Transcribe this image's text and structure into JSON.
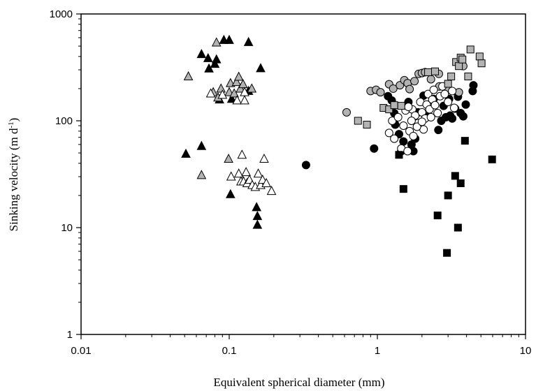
{
  "chart_data": {
    "type": "scatter",
    "title": "",
    "xlabel": "Equivalent spherical diameter (mm)",
    "ylabel_main": "Sinking velocity (m d",
    "ylabel_sup": "-1",
    "ylabel_close": ")",
    "xscale": "log",
    "yscale": "log",
    "xlim": [
      0.01,
      10
    ],
    "ylim": [
      1,
      1000
    ],
    "xticks": [
      0.01,
      0.1,
      1,
      10
    ],
    "xtick_labels": [
      "0.01",
      "0.1",
      "1",
      "10"
    ],
    "yticks": [
      1,
      10,
      100,
      1000
    ],
    "ytick_labels": [
      "1",
      "10",
      "100",
      "1000"
    ],
    "grid": false,
    "legend": "none",
    "series": [
      {
        "marker": "triangle",
        "fill": "#000000",
        "points": [
          [
            0.051,
            49
          ],
          [
            0.065,
            58
          ],
          [
            0.065,
            420
          ],
          [
            0.072,
            385
          ],
          [
            0.073,
            308
          ],
          [
            0.08,
            340
          ],
          [
            0.082,
            375
          ],
          [
            0.086,
            158
          ],
          [
            0.092,
            570
          ],
          [
            0.1,
            570
          ],
          [
            0.102,
            20.5
          ],
          [
            0.104,
            160
          ],
          [
            0.135,
            545
          ],
          [
            0.135,
            190
          ],
          [
            0.153,
            15.5
          ],
          [
            0.155,
            12.8
          ],
          [
            0.155,
            10.6
          ],
          [
            0.163,
            310
          ]
        ]
      },
      {
        "marker": "triangle",
        "fill": "#b3b3b3",
        "points": [
          [
            0.053,
            260
          ],
          [
            0.065,
            31
          ],
          [
            0.082,
            540
          ],
          [
            0.078,
            185
          ],
          [
            0.084,
            165
          ],
          [
            0.088,
            200
          ],
          [
            0.099,
            44
          ],
          [
            0.1,
            185
          ],
          [
            0.102,
            225
          ],
          [
            0.108,
            180
          ],
          [
            0.112,
            230
          ],
          [
            0.116,
            258
          ],
          [
            0.119,
            200
          ],
          [
            0.124,
            220
          ],
          [
            0.142,
            200
          ]
        ]
      },
      {
        "marker": "triangle",
        "fill": "#ffffff",
        "points": [
          [
            0.075,
            180
          ],
          [
            0.09,
            175
          ],
          [
            0.103,
            30
          ],
          [
            0.113,
            155
          ],
          [
            0.116,
            32
          ],
          [
            0.12,
            27
          ],
          [
            0.122,
            48
          ],
          [
            0.125,
            27
          ],
          [
            0.127,
            185
          ],
          [
            0.127,
            155
          ],
          [
            0.13,
            33
          ],
          [
            0.132,
            26
          ],
          [
            0.137,
            28
          ],
          [
            0.143,
            25
          ],
          [
            0.15,
            24
          ],
          [
            0.157,
            32
          ],
          [
            0.163,
            25
          ],
          [
            0.168,
            28
          ],
          [
            0.172,
            44
          ],
          [
            0.178,
            26
          ],
          [
            0.193,
            22
          ]
        ]
      },
      {
        "marker": "circle",
        "fill": "#000000",
        "points": [
          [
            0.33,
            38.5
          ],
          [
            0.95,
            55
          ],
          [
            1.18,
            170
          ],
          [
            1.25,
            155
          ],
          [
            1.3,
            118
          ],
          [
            1.32,
            92
          ],
          [
            1.4,
            75
          ],
          [
            1.45,
            52
          ],
          [
            1.5,
            64
          ],
          [
            1.55,
            135
          ],
          [
            1.62,
            150
          ],
          [
            1.7,
            60
          ],
          [
            1.75,
            52
          ],
          [
            1.8,
            68
          ],
          [
            1.88,
            120
          ],
          [
            2.05,
            172
          ],
          [
            2.2,
            110
          ],
          [
            2.4,
            160
          ],
          [
            2.58,
            82
          ],
          [
            2.7,
            100
          ],
          [
            2.8,
            138
          ],
          [
            2.9,
            108
          ],
          [
            3.05,
            160
          ],
          [
            3.1,
            112
          ],
          [
            3.2,
            105
          ],
          [
            3.35,
            130
          ],
          [
            3.5,
            168
          ],
          [
            3.65,
            118
          ],
          [
            3.8,
            110
          ],
          [
            3.95,
            142
          ],
          [
            4.4,
            190
          ],
          [
            4.45,
            215
          ]
        ]
      },
      {
        "marker": "circle",
        "fill": "#b3b3b3",
        "points": [
          [
            0.62,
            120
          ],
          [
            0.9,
            190
          ],
          [
            0.98,
            195
          ],
          [
            1.05,
            185
          ],
          [
            1.2,
            220
          ],
          [
            1.28,
            200
          ],
          [
            1.42,
            215
          ],
          [
            1.52,
            240
          ],
          [
            1.6,
            225
          ],
          [
            1.65,
            198
          ],
          [
            1.78,
            235
          ],
          [
            1.9,
            275
          ],
          [
            2.0,
            280
          ],
          [
            2.1,
            285
          ],
          [
            2.3,
            245
          ],
          [
            2.6,
            275
          ],
          [
            2.62,
            210
          ],
          [
            3.0,
            195
          ],
          [
            3.55,
            185
          ],
          [
            3.8,
            325
          ]
        ]
      },
      {
        "marker": "circle",
        "fill": "#ffffff",
        "points": [
          [
            1.2,
            77
          ],
          [
            1.26,
            100
          ],
          [
            1.3,
            68
          ],
          [
            1.38,
            108
          ],
          [
            1.45,
            55
          ],
          [
            1.5,
            90
          ],
          [
            1.55,
            125
          ],
          [
            1.6,
            52
          ],
          [
            1.65,
            80
          ],
          [
            1.72,
            128
          ],
          [
            1.75,
            72
          ],
          [
            1.8,
            112
          ],
          [
            1.88,
            95
          ],
          [
            1.95,
            150
          ],
          [
            2.0,
            120
          ],
          [
            2.05,
            83
          ],
          [
            2.1,
            105
          ],
          [
            2.15,
            142
          ],
          [
            2.2,
            178
          ],
          [
            2.25,
            128
          ],
          [
            2.35,
            158
          ],
          [
            2.4,
            195
          ],
          [
            2.45,
            140
          ],
          [
            2.55,
            118
          ],
          [
            2.65,
            170
          ],
          [
            2.75,
            210
          ],
          [
            2.85,
            178
          ],
          [
            3.0,
            150
          ],
          [
            3.2,
            190
          ],
          [
            3.3,
            132
          ],
          [
            1.85,
            88
          ],
          [
            1.7,
            100
          ],
          [
            2.0,
            98
          ],
          [
            2.3,
            108
          ],
          [
            1.62,
            135
          ]
        ]
      },
      {
        "marker": "square",
        "fill": "#000000",
        "points": [
          [
            1.4,
            48
          ],
          [
            1.5,
            23
          ],
          [
            2.55,
            13
          ],
          [
            2.95,
            5.8
          ],
          [
            3.0,
            20
          ],
          [
            3.35,
            30.5
          ],
          [
            3.5,
            10
          ],
          [
            3.65,
            26
          ],
          [
            3.9,
            65
          ],
          [
            5.95,
            43.5
          ]
        ]
      },
      {
        "marker": "square",
        "fill": "#b3b3b3",
        "points": [
          [
            0.74,
            100
          ],
          [
            0.85,
            92
          ],
          [
            1.1,
            132
          ],
          [
            1.2,
            128
          ],
          [
            1.3,
            140
          ],
          [
            1.45,
            138
          ],
          [
            2.2,
            285
          ],
          [
            2.45,
            290
          ],
          [
            3.0,
            222
          ],
          [
            3.15,
            260
          ],
          [
            3.4,
            355
          ],
          [
            3.55,
            325
          ],
          [
            3.65,
            390
          ],
          [
            3.75,
            375
          ],
          [
            4.1,
            260
          ],
          [
            4.25,
            465
          ],
          [
            4.9,
            400
          ],
          [
            5.05,
            345
          ]
        ]
      }
    ]
  }
}
